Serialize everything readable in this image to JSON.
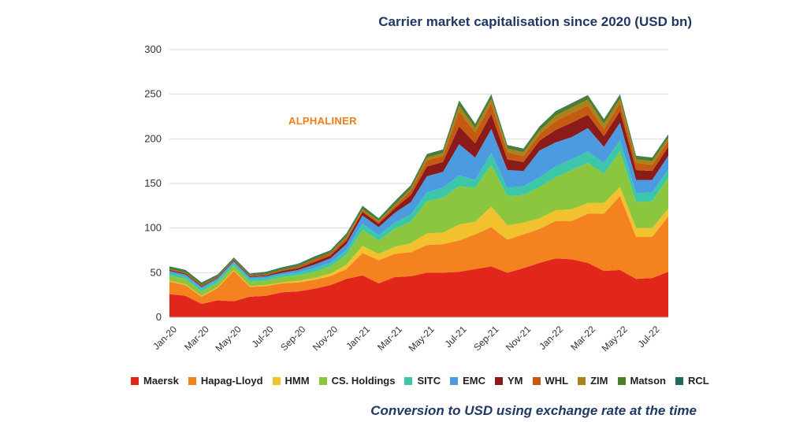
{
  "chart_data": {
    "type": "area",
    "stacked": true,
    "title": "Carrier market capitalisation since 2020 (USD bn)",
    "footnote": "Conversion to USD using exchange rate at the time",
    "watermark": "ALPHALINER",
    "xlabel": "",
    "ylabel": "",
    "ylim": [
      0,
      300
    ],
    "yticks": [
      0,
      50,
      100,
      150,
      200,
      250,
      300
    ],
    "grid": "horizontal",
    "legend_position": "bottom",
    "x": [
      "Jan-20",
      "Feb-20",
      "Mar-20",
      "Apr-20",
      "May-20",
      "Jun-20",
      "Jul-20",
      "Aug-20",
      "Sep-20",
      "Oct-20",
      "Nov-20",
      "Dec-20",
      "Jan-21",
      "Feb-21",
      "Mar-21",
      "Apr-21",
      "May-21",
      "Jun-21",
      "Jul-21",
      "Aug-21",
      "Sep-21",
      "Oct-21",
      "Nov-21",
      "Dec-21",
      "Jan-22",
      "Feb-22",
      "Mar-22",
      "Apr-22",
      "May-22",
      "Jun-22",
      "Jul-22",
      "Aug-22"
    ],
    "xtick_labels": [
      "Jan-20",
      "Mar-20",
      "May-20",
      "Jul-20",
      "Sep-20",
      "Nov-20",
      "Jan-21",
      "Mar-21",
      "May-21",
      "Jul-21",
      "Sep-21",
      "Nov-21",
      "Jan-22",
      "Mar-22",
      "May-22",
      "Jul-22"
    ],
    "series": [
      {
        "name": "Maersk",
        "color": "#e1261c",
        "values": [
          26,
          24,
          15,
          19,
          18,
          23,
          24,
          28,
          29,
          32,
          36,
          43,
          47,
          38,
          45,
          46,
          50,
          50,
          51,
          54,
          57,
          50,
          55,
          61,
          66,
          65,
          61,
          52,
          53,
          43,
          44,
          51
        ]
      },
      {
        "name": "Hapag-Lloyd",
        "color": "#f4821f",
        "values": [
          14,
          12,
          8,
          14,
          34,
          11,
          11,
          10,
          10,
          10,
          10,
          11,
          25,
          26,
          26,
          27,
          31,
          32,
          35,
          39,
          44,
          37,
          38,
          38,
          42,
          43,
          55,
          64,
          83,
          47,
          46,
          62
        ]
      },
      {
        "name": "HMM",
        "color": "#f2c12e",
        "values": [
          1,
          1,
          1,
          1,
          1,
          1,
          1,
          1,
          2,
          2,
          3,
          5,
          8,
          7,
          8,
          10,
          13,
          13,
          18,
          14,
          23,
          16,
          13,
          12,
          12,
          13,
          12,
          12,
          10,
          10,
          10,
          9
        ]
      },
      {
        "name": "CS. Holdings",
        "color": "#8cc63f",
        "values": [
          6,
          6,
          5,
          5,
          5,
          5,
          5,
          6,
          6,
          7,
          8,
          11,
          18,
          15,
          20,
          24,
          36,
          39,
          43,
          38,
          47,
          33,
          31,
          35,
          37,
          44,
          45,
          33,
          40,
          29,
          30,
          35
        ]
      },
      {
        "name": "SITC",
        "color": "#3cc8a8",
        "values": [
          3,
          3,
          3,
          3,
          3,
          3,
          3,
          3,
          3,
          4,
          4,
          5,
          7,
          6,
          7,
          8,
          10,
          11,
          12,
          9,
          13,
          9,
          10,
          11,
          12,
          12,
          13,
          12,
          12,
          10,
          10,
          9
        ]
      },
      {
        "name": "EMC",
        "color": "#4c9be0",
        "values": [
          2,
          2,
          2,
          2,
          2,
          2,
          2,
          2,
          3,
          4,
          5,
          7,
          9,
          9,
          11,
          14,
          18,
          18,
          35,
          25,
          27,
          20,
          17,
          30,
          27,
          25,
          26,
          18,
          20,
          15,
          14,
          15
        ]
      },
      {
        "name": "YM",
        "color": "#8b1a1a",
        "values": [
          1,
          1,
          1,
          1,
          1,
          1,
          1,
          2,
          2,
          3,
          3,
          4,
          4,
          4,
          5,
          8,
          11,
          11,
          20,
          16,
          17,
          12,
          10,
          11,
          14,
          16,
          15,
          12,
          13,
          11,
          10,
          10
        ]
      },
      {
        "name": "WHL",
        "color": "#c55a11",
        "values": [
          1,
          1,
          1,
          1,
          1,
          1,
          1,
          1,
          2,
          3,
          3,
          3,
          2,
          2,
          3,
          5,
          7,
          7,
          17,
          12,
          12,
          8,
          7,
          7,
          10,
          11,
          10,
          8,
          9,
          8,
          7,
          7
        ]
      },
      {
        "name": "ZIM",
        "color": "#a9821e",
        "values": [
          0,
          0,
          0,
          0,
          0,
          0,
          0,
          0,
          0,
          0,
          0,
          1,
          1,
          1,
          1,
          2,
          3,
          3,
          6,
          5,
          5,
          4,
          4,
          4,
          6,
          6,
          7,
          6,
          5,
          4,
          4,
          3
        ]
      },
      {
        "name": "Matson",
        "color": "#4e7d2a",
        "values": [
          2,
          2,
          2,
          1,
          1,
          1,
          2,
          2,
          2,
          2,
          2,
          3,
          3,
          2,
          3,
          3,
          3,
          3,
          5,
          4,
          4,
          3,
          3,
          4,
          4,
          4,
          4,
          4,
          4,
          3,
          3,
          3
        ]
      },
      {
        "name": "RCL",
        "color": "#1e6b5c",
        "values": [
          1,
          1,
          1,
          1,
          1,
          1,
          1,
          1,
          1,
          1,
          1,
          1,
          1,
          1,
          1,
          1,
          1,
          1,
          1,
          1,
          1,
          1,
          1,
          1,
          1,
          1,
          1,
          1,
          1,
          1,
          1,
          1
        ]
      }
    ]
  }
}
